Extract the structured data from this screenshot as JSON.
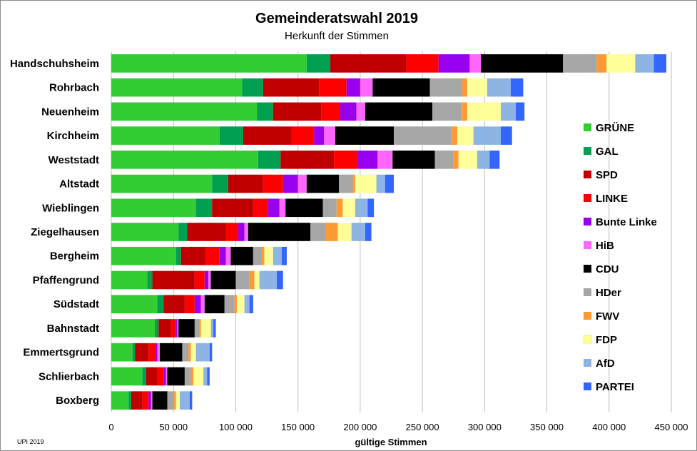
{
  "chart_data": {
    "type": "bar",
    "orientation": "horizontal",
    "stacked": true,
    "title": "Gemeinderatswahl 2019",
    "subtitle": "Herkunft der Stimmen",
    "xlabel": "gültige Stimmen",
    "source": "UPI 2019",
    "xlim": [
      0,
      450000
    ],
    "xticks": [
      0,
      50000,
      100000,
      150000,
      200000,
      250000,
      300000,
      350000,
      400000,
      450000
    ],
    "xtick_labels": [
      "0",
      "50 000",
      "100 000",
      "150 000",
      "200 000",
      "250 000",
      "300 000",
      "350 000",
      "400 000",
      "450 000"
    ],
    "grid": "vertical",
    "legend": "right",
    "categories": [
      "Handschuhsheim",
      "Rohrbach",
      "Neuenheim",
      "Kirchheim",
      "Weststadt",
      "Altstadt",
      "Wieblingen",
      "Ziegelhausen",
      "Bergheim",
      "Pfaffengrund",
      "Südstadt",
      "Bahnstadt",
      "Emmertsgrund",
      "Schlierbach",
      "Boxberg"
    ],
    "series": [
      {
        "name": "GRÜNE",
        "color": "#33cc33",
        "values": [
          157000,
          105000,
          117000,
          87000,
          118000,
          81000,
          68000,
          54000,
          52000,
          29000,
          37000,
          35000,
          17000,
          25000,
          14000
        ]
      },
      {
        "name": "GAL",
        "color": "#00a050",
        "values": [
          19000,
          17000,
          13000,
          19000,
          18000,
          13000,
          13000,
          7000,
          4000,
          4000,
          5000,
          3000,
          2000,
          3000,
          2000
        ]
      },
      {
        "name": "SPD",
        "color": "#c00000",
        "values": [
          61000,
          45000,
          39000,
          39000,
          43000,
          28000,
          33000,
          31000,
          20000,
          34000,
          17000,
          10000,
          11000,
          9000,
          9000
        ]
      },
      {
        "name": "LINKE",
        "color": "#ff0000",
        "values": [
          26000,
          22000,
          15000,
          18000,
          19000,
          16000,
          12000,
          10000,
          11000,
          8000,
          8000,
          4000,
          5000,
          5000,
          5000
        ]
      },
      {
        "name": "Bunte Linke",
        "color": "#9900ee",
        "values": [
          25000,
          11000,
          13000,
          8000,
          16000,
          12000,
          9000,
          5000,
          5000,
          3000,
          5000,
          1000,
          2000,
          2000,
          2000
        ]
      },
      {
        "name": "HiB",
        "color": "#ff66ff",
        "values": [
          9000,
          10000,
          7000,
          9000,
          12000,
          7000,
          5000,
          3000,
          4000,
          2000,
          3000,
          1000,
          2000,
          1000,
          1000
        ]
      },
      {
        "name": "CDU",
        "color": "#000000",
        "values": [
          66000,
          46000,
          54000,
          47000,
          34000,
          26000,
          30000,
          50000,
          18000,
          20000,
          16000,
          13000,
          18000,
          14000,
          12000
        ]
      },
      {
        "name": "HDer",
        "color": "#a6a6a6",
        "values": [
          27000,
          26000,
          23000,
          46000,
          15000,
          11000,
          11000,
          12000,
          7000,
          11000,
          8000,
          4000,
          5000,
          5000,
          5000
        ]
      },
      {
        "name": "FWV",
        "color": "#ff9933",
        "values": [
          8000,
          4000,
          5000,
          5000,
          4000,
          2000,
          5000,
          10000,
          2000,
          4000,
          2000,
          1000,
          2000,
          2000,
          2000
        ]
      },
      {
        "name": "FDP",
        "color": "#ffff99",
        "values": [
          23000,
          16000,
          27000,
          13000,
          15000,
          17000,
          10000,
          11000,
          7000,
          4000,
          6000,
          8000,
          4000,
          8000,
          3000
        ]
      },
      {
        "name": "AfD",
        "color": "#8db4e2",
        "values": [
          15000,
          19000,
          12000,
          22000,
          10000,
          7000,
          10000,
          11000,
          7000,
          14000,
          4000,
          2000,
          11000,
          3000,
          8000
        ]
      },
      {
        "name": "PARTEI",
        "color": "#3366ff",
        "values": [
          10000,
          10000,
          7000,
          9000,
          8000,
          7000,
          5000,
          5000,
          4000,
          5000,
          3000,
          2000,
          2000,
          2000,
          2000
        ]
      }
    ]
  }
}
